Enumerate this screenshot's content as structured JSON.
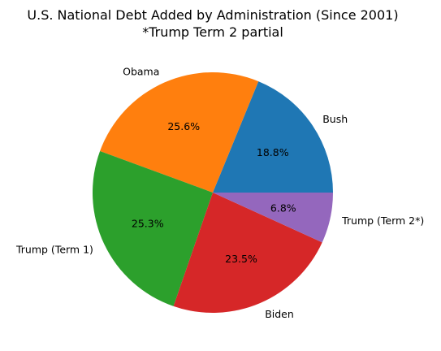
{
  "chart_data": {
    "type": "pie",
    "title": "U.S. National Debt Added by Administration (Since 2001)",
    "subtitle": "*Trump Term 2 partial",
    "start_angle_deg": 0,
    "direction": "counterclockwise",
    "slices": [
      {
        "label": "Bush",
        "value": 18.8,
        "pct_label": "18.8%",
        "color": "#1f77b4"
      },
      {
        "label": "Obama",
        "value": 25.6,
        "pct_label": "25.6%",
        "color": "#ff7f0e"
      },
      {
        "label": "Trump (Term 1)",
        "value": 25.3,
        "pct_label": "25.3%",
        "color": "#2ca02c"
      },
      {
        "label": "Biden",
        "value": 23.5,
        "pct_label": "23.5%",
        "color": "#d62728"
      },
      {
        "label": "Trump (Term 2*)",
        "value": 6.8,
        "pct_label": "6.8%",
        "color": "#9467bd"
      }
    ]
  }
}
